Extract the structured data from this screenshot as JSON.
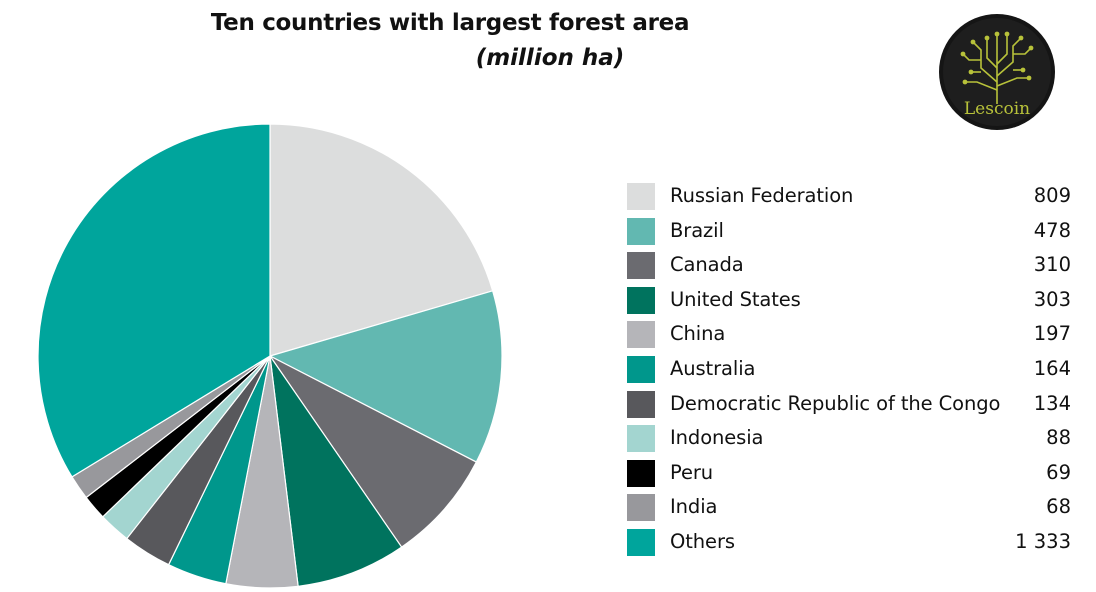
{
  "chart_data": {
    "type": "pie",
    "title": "Ten countries with largest forest area",
    "subtitle": "(million ha)",
    "legend_position": "right",
    "categories": [
      "Russian Federation",
      "Brazil",
      "Canada",
      "United States",
      "China",
      "Australia",
      "Democratic Republic of the Congo",
      "Indonesia",
      "Peru",
      "India",
      "Others"
    ],
    "values": [
      809,
      478,
      310,
      303,
      197,
      164,
      134,
      88,
      69,
      68,
      1333
    ],
    "value_labels": [
      "809",
      "478",
      "310",
      "303",
      "197",
      "164",
      "134",
      "88",
      "69",
      "68",
      "1 333"
    ],
    "colors": [
      "#dcdddd",
      "#62b8b1",
      "#6b6b70",
      "#00735e",
      "#b5b5b9",
      "#00978c",
      "#58585c",
      "#a3d5d0",
      "#000000",
      "#98989c",
      "#00a59c"
    ]
  },
  "logo": {
    "text": "Lescoin",
    "background": "#1e1e1e",
    "accent": "#b8c23a"
  }
}
